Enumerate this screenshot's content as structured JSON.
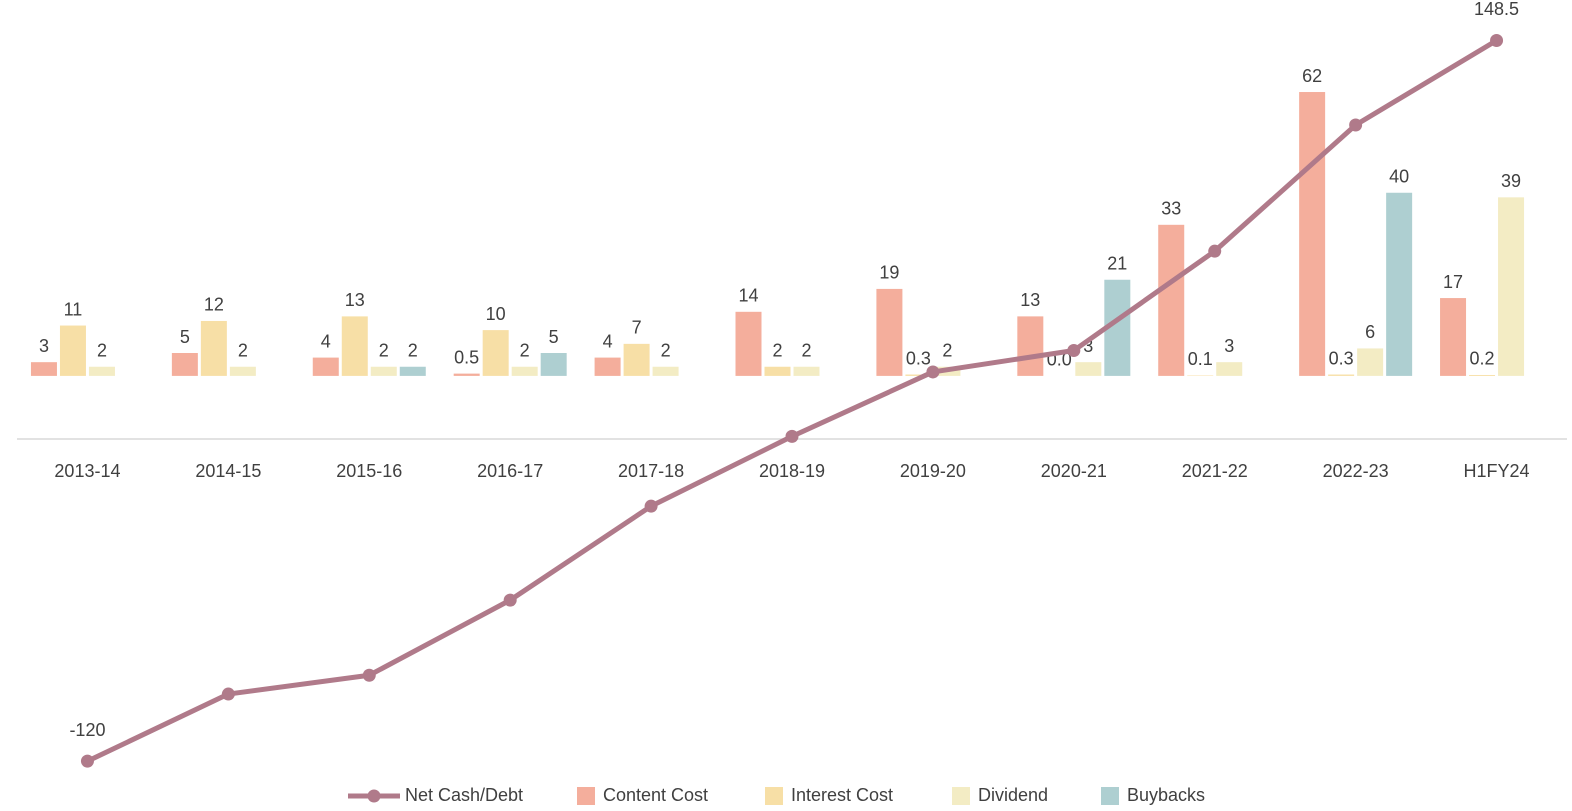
{
  "chart_data": {
    "type": "bar-line",
    "categories": [
      "2013-14",
      "2014-15",
      "2015-16",
      "2016-17",
      "2017-18",
      "2018-19",
      "2019-20",
      "2020-21",
      "2021-22",
      "2022-23",
      "H1FY24"
    ],
    "series": [
      {
        "name": "Net Cash/Debt",
        "type": "line",
        "axis": "y2",
        "color": "#b07a8a",
        "values": [
          -120,
          -95,
          -88,
          -60,
          -25,
          1,
          25,
          33,
          70,
          117,
          148.5
        ],
        "value_labels": [
          "-120",
          null,
          null,
          null,
          null,
          null,
          null,
          null,
          null,
          null,
          "148.5"
        ]
      },
      {
        "name": "Content Cost",
        "type": "bar",
        "color": "#f4ae9c",
        "values": [
          3,
          5,
          4,
          0.5,
          4,
          14,
          19,
          13,
          33,
          62,
          17
        ]
      },
      {
        "name": "Interest Cost",
        "type": "bar",
        "color": "#f7dfa6",
        "values": [
          11,
          12,
          13,
          10,
          7,
          2,
          0.3,
          0,
          0.1,
          0.3,
          0.2
        ],
        "value_labels": [
          "11",
          "12",
          "13",
          "10",
          "7",
          "2",
          "0.3",
          "0.0",
          "0.1",
          "0.3",
          "0.2"
        ]
      },
      {
        "name": "Dividend",
        "type": "bar",
        "color": "#f3ecc4",
        "values": [
          2,
          2,
          2,
          2,
          2,
          2,
          2,
          3,
          3,
          6,
          39
        ]
      },
      {
        "name": "Buybacks",
        "type": "bar",
        "color": "#aecfd1",
        "values": [
          null,
          null,
          2,
          5,
          null,
          null,
          null,
          21,
          null,
          40,
          null
        ]
      }
    ],
    "ylim": [
      -90,
      80
    ],
    "y2lim": [
      -130,
      160
    ],
    "legend": "bottom",
    "grid": false
  }
}
